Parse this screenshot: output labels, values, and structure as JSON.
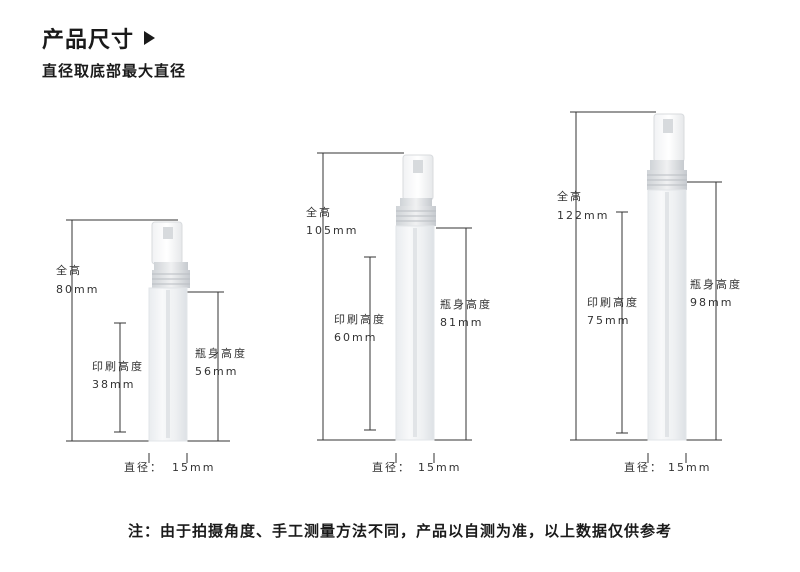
{
  "header": {
    "title": "产品尺寸",
    "subtitle": "直径取底部最大直径"
  },
  "bottles": [
    {
      "total_label": "全高",
      "total_value": "80mm",
      "print_label": "印刷高度",
      "print_value": "38mm",
      "body_label": "瓶身高度",
      "body_value": "56mm",
      "diameter_label": "直径：",
      "diameter_value": "15mm"
    },
    {
      "total_label": "全高",
      "total_value": "105mm",
      "print_label": "印刷高度",
      "print_value": "60mm",
      "body_label": "瓶身高度",
      "body_value": "81mm",
      "diameter_label": "直径：",
      "diameter_value": "15mm"
    },
    {
      "total_label": "全高",
      "total_value": "122mm",
      "print_label": "印刷高度",
      "print_value": "75mm",
      "body_label": "瓶身高度",
      "body_value": "98mm",
      "diameter_label": "直径：",
      "diameter_value": "15mm"
    }
  ],
  "footer": {
    "note": "注：由于拍摄角度、手工测量方法不同，产品以自测为准，以上数据仅供参考"
  }
}
